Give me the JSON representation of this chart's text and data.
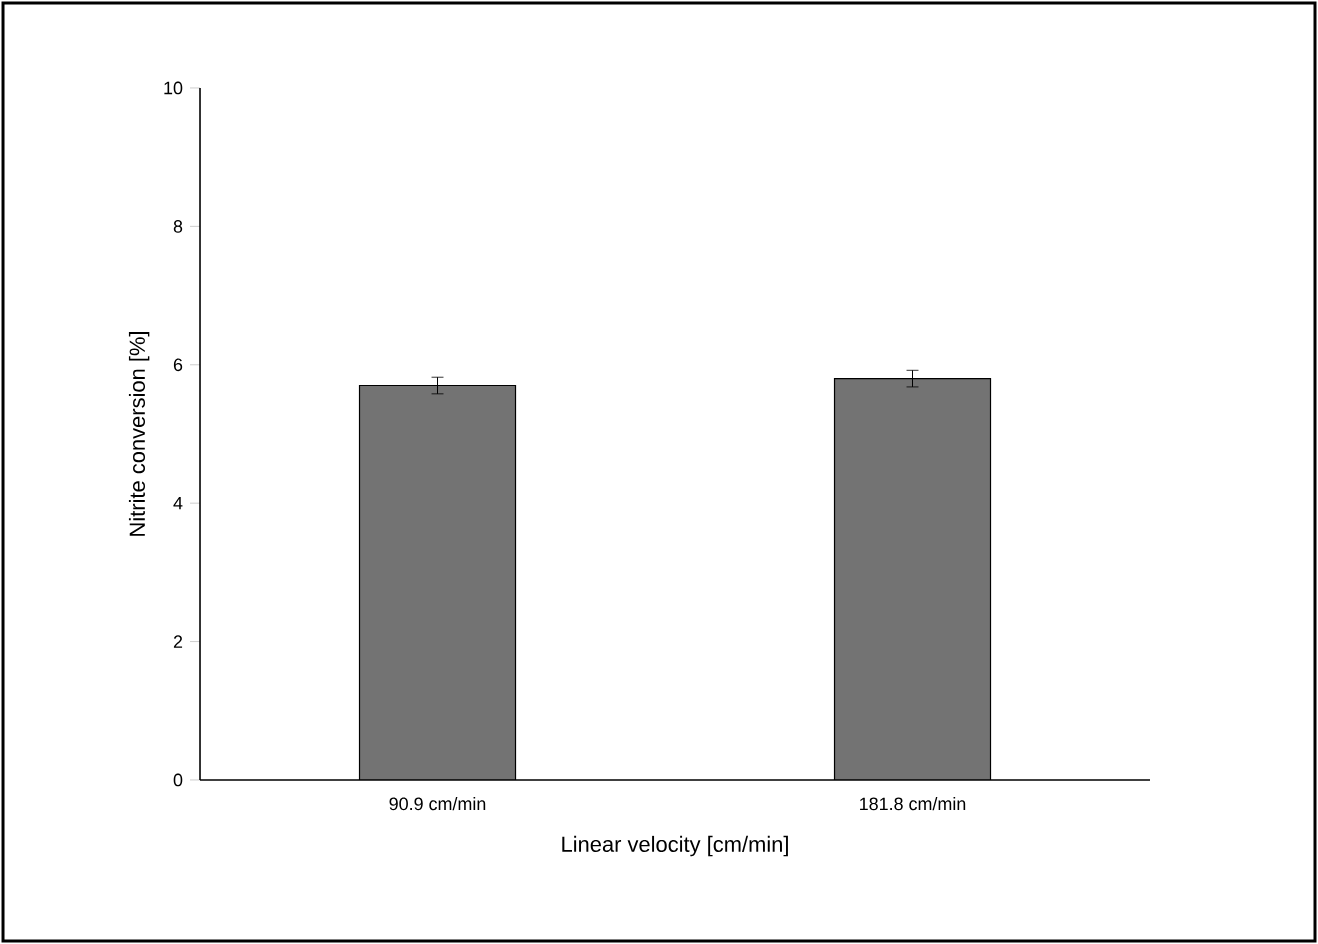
{
  "chart_data": {
    "type": "bar",
    "xlabel": "Linear velocity [cm/min]",
    "ylabel": "Nitrite conversion [%]",
    "categories": [
      "90.9 cm/min",
      "181.8 cm/min"
    ],
    "values": [
      5.7,
      5.8
    ],
    "errors": [
      0.12,
      0.12
    ],
    "color": "#737373",
    "ylim": [
      0,
      10
    ],
    "yticks": [
      0,
      2,
      4,
      6,
      8,
      10
    ],
    "grid": false
  }
}
